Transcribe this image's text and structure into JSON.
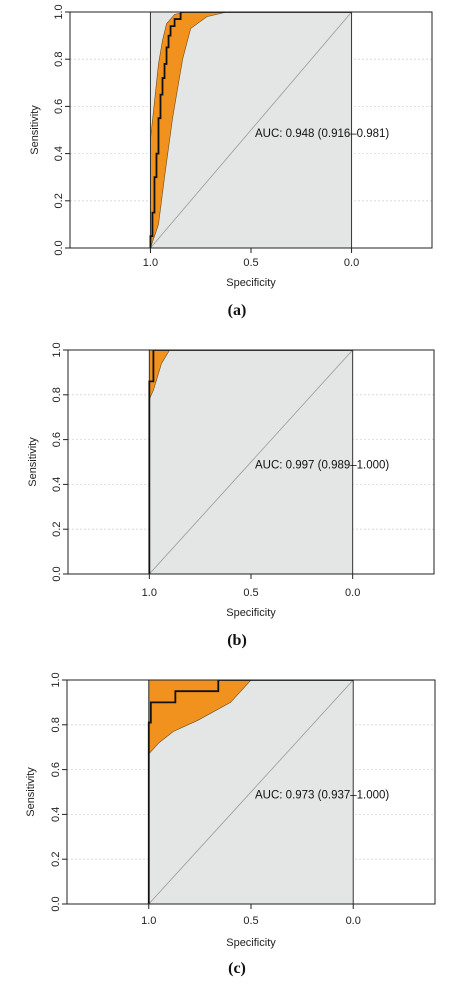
{
  "colors": {
    "ci_band": "#F2921E",
    "roc_line": "#111111",
    "area_fill": "#E4E6E6",
    "grid": "#D5D5D5",
    "diagonal": "#9A9A9A"
  },
  "chart_data": [
    {
      "type": "line",
      "panel_label": "a",
      "xlabel": "Specificity",
      "ylabel": "Sensitivity",
      "x_reversed": true,
      "xlim": [
        1.4,
        -0.4
      ],
      "ylim": [
        0,
        1
      ],
      "x_ticks": [
        "1.0",
        "0.5",
        "0.0"
      ],
      "x_tick_values": [
        1.0,
        0.5,
        0.0
      ],
      "y_ticks": [
        "0.0",
        "0.2",
        "0.4",
        "0.6",
        "0.8",
        "1.0"
      ],
      "y_tick_values": [
        0,
        0.2,
        0.4,
        0.6,
        0.8,
        1.0
      ],
      "auc_text": "AUC: 0.948 (0.916–0.981)",
      "grid": true,
      "roc": [
        [
          1.0,
          0.0
        ],
        [
          1.0,
          0.05
        ],
        [
          0.99,
          0.05
        ],
        [
          0.99,
          0.15
        ],
        [
          0.98,
          0.15
        ],
        [
          0.98,
          0.3
        ],
        [
          0.97,
          0.3
        ],
        [
          0.97,
          0.4
        ],
        [
          0.96,
          0.4
        ],
        [
          0.96,
          0.55
        ],
        [
          0.95,
          0.55
        ],
        [
          0.95,
          0.65
        ],
        [
          0.94,
          0.65
        ],
        [
          0.94,
          0.72
        ],
        [
          0.93,
          0.72
        ],
        [
          0.93,
          0.78
        ],
        [
          0.92,
          0.78
        ],
        [
          0.92,
          0.85
        ],
        [
          0.91,
          0.85
        ],
        [
          0.91,
          0.9
        ],
        [
          0.9,
          0.9
        ],
        [
          0.9,
          0.94
        ],
        [
          0.88,
          0.94
        ],
        [
          0.88,
          0.97
        ],
        [
          0.85,
          0.97
        ],
        [
          0.85,
          1.0
        ],
        [
          0.0,
          1.0
        ]
      ],
      "ci_upper": [
        [
          1.0,
          0.46
        ],
        [
          0.98,
          0.62
        ],
        [
          0.96,
          0.78
        ],
        [
          0.94,
          0.88
        ],
        [
          0.92,
          0.95
        ],
        [
          0.88,
          0.99
        ],
        [
          0.82,
          1.0
        ],
        [
          0.0,
          1.0
        ]
      ],
      "ci_lower": [
        [
          1.0,
          0.0
        ],
        [
          0.96,
          0.1
        ],
        [
          0.93,
          0.3
        ],
        [
          0.89,
          0.55
        ],
        [
          0.84,
          0.8
        ],
        [
          0.8,
          0.93
        ],
        [
          0.72,
          0.98
        ],
        [
          0.62,
          1.0
        ],
        [
          0.0,
          1.0
        ]
      ]
    },
    {
      "type": "line",
      "panel_label": "b",
      "xlabel": "Specificity",
      "ylabel": "Sensitivity",
      "x_reversed": true,
      "xlim": [
        1.4,
        -0.4
      ],
      "ylim": [
        0,
        1
      ],
      "x_ticks": [
        "1.0",
        "0.5",
        "0.0"
      ],
      "x_tick_values": [
        1.0,
        0.5,
        0.0
      ],
      "y_ticks": [
        "0.0",
        "0.2",
        "0.4",
        "0.6",
        "0.8",
        "1.0"
      ],
      "y_tick_values": [
        0,
        0.2,
        0.4,
        0.6,
        0.8,
        1.0
      ],
      "auc_text": "AUC: 0.997 (0.989–1.000)",
      "grid": true,
      "roc": [
        [
          1.0,
          0.0
        ],
        [
          1.0,
          0.86
        ],
        [
          0.98,
          0.86
        ],
        [
          0.98,
          1.0
        ],
        [
          0.0,
          1.0
        ]
      ],
      "ci_upper": [
        [
          1.0,
          0.78
        ],
        [
          1.0,
          1.0
        ],
        [
          0.0,
          1.0
        ]
      ],
      "ci_lower": [
        [
          1.0,
          0.78
        ],
        [
          0.98,
          0.82
        ],
        [
          0.94,
          0.94
        ],
        [
          0.9,
          1.0
        ],
        [
          0.0,
          1.0
        ]
      ]
    },
    {
      "type": "line",
      "panel_label": "c",
      "xlabel": "Specificity",
      "ylabel": "Sensitivity",
      "x_reversed": true,
      "xlim": [
        1.4,
        -0.4
      ],
      "ylim": [
        0,
        1
      ],
      "x_ticks": [
        "1.0",
        "0.5",
        "0.0"
      ],
      "x_tick_values": [
        1.0,
        0.5,
        0.0
      ],
      "y_ticks": [
        "0.0",
        "0.2",
        "0.4",
        "0.6",
        "0.8",
        "1.0"
      ],
      "y_tick_values": [
        0,
        0.2,
        0.4,
        0.6,
        0.8,
        1.0
      ],
      "auc_text": "AUC: 0.973 (0.937–1.000)",
      "grid": true,
      "roc": [
        [
          1.0,
          0.0
        ],
        [
          1.0,
          0.81
        ],
        [
          0.99,
          0.81
        ],
        [
          0.99,
          0.9
        ],
        [
          0.87,
          0.9
        ],
        [
          0.87,
          0.95
        ],
        [
          0.66,
          0.95
        ],
        [
          0.66,
          1.0
        ],
        [
          0.0,
          1.0
        ]
      ],
      "ci_upper": [
        [
          1.0,
          0.67
        ],
        [
          1.0,
          1.0
        ],
        [
          0.0,
          1.0
        ]
      ],
      "ci_lower": [
        [
          1.0,
          0.67
        ],
        [
          0.95,
          0.72
        ],
        [
          0.88,
          0.77
        ],
        [
          0.76,
          0.82
        ],
        [
          0.6,
          0.9
        ],
        [
          0.5,
          1.0
        ],
        [
          0.0,
          1.0
        ]
      ]
    }
  ],
  "captions": [
    "(a)",
    "(b)",
    "(c)"
  ]
}
